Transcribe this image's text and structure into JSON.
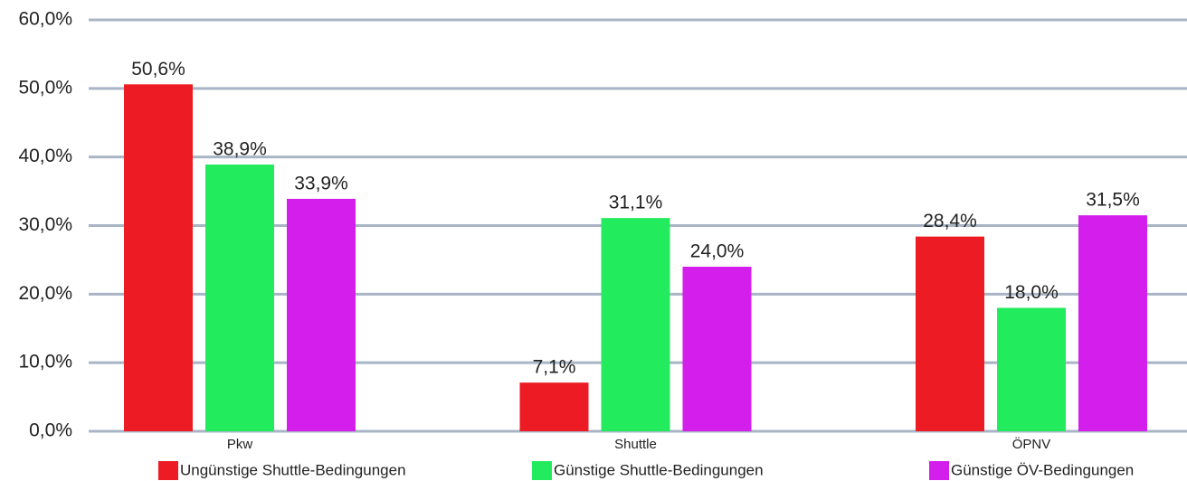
{
  "chart_data": {
    "type": "bar",
    "categories": [
      "Pkw",
      "Shuttle",
      "ÖPNV"
    ],
    "series": [
      {
        "name": "Ungünstige Shuttle-Bedingungen",
        "color": "#ed1c24",
        "values": [
          50.6,
          7.1,
          28.4
        ],
        "value_labels": [
          "50,6%",
          "7,1%",
          "28,4%"
        ]
      },
      {
        "name": "Günstige Shuttle-Bedingungen",
        "color": "#22ec5e",
        "values": [
          38.9,
          31.1,
          18.0
        ],
        "value_labels": [
          "38,9%",
          "31,1%",
          "18,0%"
        ]
      },
      {
        "name": "Günstige ÖV-Bedingungen",
        "color": "#d41eec",
        "values": [
          33.9,
          24.0,
          31.5
        ],
        "value_labels": [
          "33,9%",
          "24,0%",
          "31,5%"
        ]
      }
    ],
    "ylim": [
      0,
      60
    ],
    "yticks": [
      {
        "value": 0,
        "label": "0,0%"
      },
      {
        "value": 10,
        "label": "10,0%"
      },
      {
        "value": 20,
        "label": "20,0%"
      },
      {
        "value": 30,
        "label": "30,0%"
      },
      {
        "value": 40,
        "label": "40,0%"
      },
      {
        "value": 50,
        "label": "50,0%"
      },
      {
        "value": 60,
        "label": "60,0%"
      }
    ],
    "grid": true
  }
}
